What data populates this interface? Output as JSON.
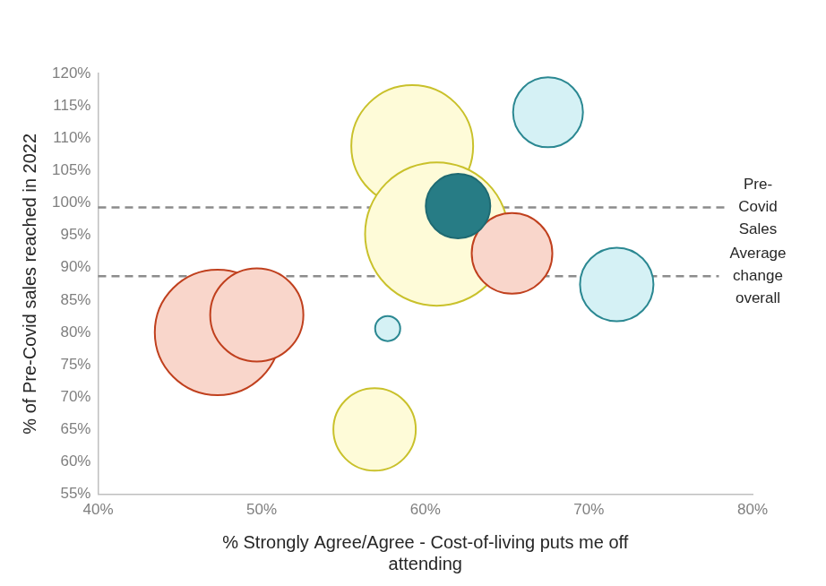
{
  "chart_data": {
    "type": "bubble",
    "x_label": [
      "% Strongly Agree/Agree - Cost-of-living puts me off",
      "attending"
    ],
    "y_label": "% of Pre-Covid sales reached in 2022",
    "x": [
      47.3,
      49.7,
      56.9,
      59.2,
      60.7,
      57.7,
      65.3,
      71.7,
      67.5,
      62.0
    ],
    "values": [
      80,
      82.7,
      65,
      108.8,
      95.2,
      80.6,
      92.2,
      87.4,
      114,
      99.5
    ],
    "sizes": [
      70,
      52,
      46,
      68,
      80,
      14,
      45,
      41,
      39,
      36
    ],
    "colors": [
      "#f9d6cb",
      "#f9d6cb",
      "#fefbd8",
      "#fefbd8",
      "#fefbd8",
      "#d5f1f5",
      "#f9d6cb",
      "#d5f1f5",
      "#d5f1f5",
      "#277c85"
    ],
    "xlim": [
      40,
      80
    ],
    "xticks": [
      {
        "value": 40,
        "label": "40%"
      },
      {
        "value": 50,
        "label": "50%"
      },
      {
        "value": 60,
        "label": "60%"
      },
      {
        "value": 70,
        "label": "70%"
      },
      {
        "value": 80,
        "label": "80%"
      }
    ],
    "ylim": [
      55,
      120
    ],
    "yticks": [
      {
        "value": 55,
        "label": "55%"
      },
      {
        "value": 60,
        "label": "60%"
      },
      {
        "value": 65,
        "label": "65%"
      },
      {
        "value": 70,
        "label": "70%"
      },
      {
        "value": 75,
        "label": "75%"
      },
      {
        "value": 80,
        "label": "80%"
      },
      {
        "value": 85,
        "label": "85%"
      },
      {
        "value": 90,
        "label": "90%"
      },
      {
        "value": 95,
        "label": "95%"
      },
      {
        "value": 100,
        "label": "100%"
      },
      {
        "value": 105,
        "label": "105%"
      },
      {
        "value": 110,
        "label": "110%"
      },
      {
        "value": 115,
        "label": "115%"
      },
      {
        "value": 120,
        "label": "120%"
      }
    ],
    "grid": false,
    "reference_lines": [
      {
        "value": 99.3,
        "label": [
          "Pre-",
          "Covid",
          "Sales"
        ],
        "line_style": "dashed"
      },
      {
        "value": 88.7,
        "label": [
          "Average",
          "change",
          "overall"
        ],
        "line_style": "dashed"
      }
    ]
  }
}
